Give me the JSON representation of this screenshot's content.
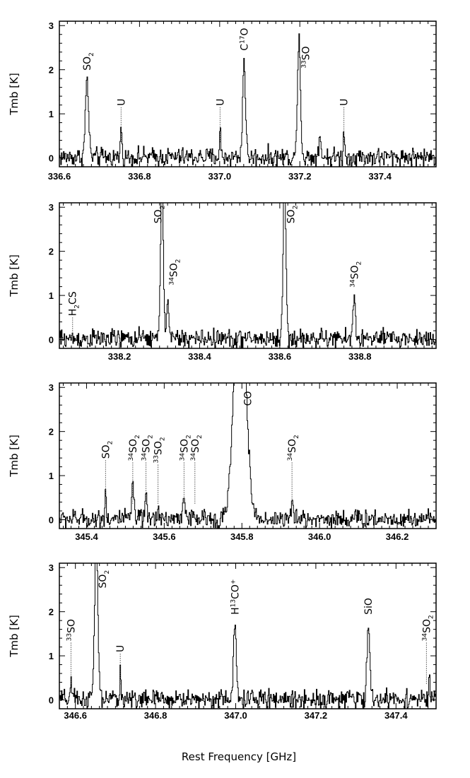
{
  "chart_data": [
    {
      "type": "line",
      "ylabel": "Tmb [K]",
      "xlim": [
        336.6,
        337.54
      ],
      "ylim": [
        -0.2,
        3.1
      ],
      "xticks": [
        "336.6",
        "336.8",
        "337.0",
        "337.2",
        "337.4"
      ],
      "xtick_values": [
        336.6,
        336.8,
        337.0,
        337.2,
        337.4
      ],
      "yticks": [
        "0",
        "1",
        "2",
        "3"
      ],
      "ytick_values": [
        0,
        1,
        2,
        3
      ],
      "peaks": [
        {
          "x": 336.669,
          "height": 1.75,
          "width": 0.004
        },
        {
          "x": 336.754,
          "height": 0.8,
          "width": 0.0015
        },
        {
          "x": 337.001,
          "height": 0.7,
          "width": 0.0015
        },
        {
          "x": 337.061,
          "height": 2.2,
          "width": 0.0035
        },
        {
          "x": 337.198,
          "height": 2.85,
          "width": 0.0035
        },
        {
          "x": 337.25,
          "height": 0.45,
          "width": 0.003
        },
        {
          "x": 337.31,
          "height": 0.65,
          "width": 0.0015
        }
      ],
      "noise": 0.14,
      "annotations": [
        {
          "species": "SO",
          "iso": "",
          "sub": "2",
          "x": 336.669,
          "y": 1.95,
          "dotted": false
        },
        {
          "species": "U",
          "iso": "",
          "sub": "",
          "x": 336.754,
          "y": 1.15,
          "dotted": true
        },
        {
          "species": "U",
          "iso": "",
          "sub": "",
          "x": 337.001,
          "y": 1.15,
          "dotted": true
        },
        {
          "species": "C",
          "iso": "17",
          "post": "O",
          "sub": "",
          "x": 337.061,
          "y": 2.4,
          "dotted": false
        },
        {
          "species": "SO",
          "iso": "33",
          "sub": "",
          "x": 337.215,
          "y": 2.0,
          "dotted": false
        },
        {
          "species": "U",
          "iso": "",
          "sub": "",
          "x": 337.31,
          "y": 1.15,
          "dotted": true
        }
      ]
    },
    {
      "type": "line",
      "ylabel": "Tmb [K]",
      "xlim": [
        338.05,
        338.99
      ],
      "ylim": [
        -0.2,
        3.1
      ],
      "xticks": [
        "338.2",
        "338.4",
        "338.6",
        "338.8"
      ],
      "xtick_values": [
        338.2,
        338.4,
        338.6,
        338.8
      ],
      "yticks": [
        "0",
        "1",
        "2",
        "3"
      ],
      "ytick_values": [
        0,
        1,
        2,
        3
      ],
      "peaks": [
        {
          "x": 338.306,
          "height": 3.6,
          "width": 0.0035
        },
        {
          "x": 338.32,
          "height": 0.95,
          "width": 0.0025
        },
        {
          "x": 338.612,
          "height": 3.6,
          "width": 0.0035
        },
        {
          "x": 338.786,
          "height": 0.95,
          "width": 0.003
        }
      ],
      "noise": 0.14,
      "annotations": [
        {
          "species": "H",
          "iso": "",
          "sub": "2",
          "post": "CS",
          "x": 338.083,
          "y": 0.5,
          "dotted": true
        },
        {
          "species": "SO",
          "iso": "",
          "sub": "2",
          "x": 338.296,
          "y": 2.6,
          "dotted": false
        },
        {
          "species": "SO",
          "iso": "34",
          "sub": "2",
          "x": 338.335,
          "y": 1.2,
          "dotted": false
        },
        {
          "species": "SO",
          "iso": "",
          "sub": "2",
          "x": 338.628,
          "y": 2.6,
          "dotted": false
        },
        {
          "species": "SO",
          "iso": "34",
          "sub": "2",
          "x": 338.786,
          "y": 1.15,
          "dotted": false
        }
      ]
    },
    {
      "type": "line",
      "ylabel": "Tmb [K]",
      "xlim": [
        345.33,
        346.3
      ],
      "ylim": [
        -0.2,
        3.1
      ],
      "xticks": [
        "345.4",
        "345.6",
        "345.8",
        "346.0",
        "346.2"
      ],
      "xtick_values": [
        345.4,
        345.6,
        345.8,
        346.0,
        346.2
      ],
      "yticks": [
        "0",
        "1",
        "2",
        "3"
      ],
      "ytick_values": [
        0,
        1,
        2,
        3
      ],
      "peaks": [
        {
          "x": 345.449,
          "height": 0.75,
          "width": 0.0015
        },
        {
          "x": 345.519,
          "height": 0.85,
          "width": 0.0025
        },
        {
          "x": 345.553,
          "height": 0.5,
          "width": 0.002
        },
        {
          "x": 345.585,
          "height": 0.35,
          "width": 0.002
        },
        {
          "x": 345.651,
          "height": 0.6,
          "width": 0.003
        },
        {
          "x": 345.795,
          "height": 6.0,
          "width": 0.014
        },
        {
          "x": 345.929,
          "height": 0.45,
          "width": 0.002
        }
      ],
      "noise": 0.14,
      "annotations": [
        {
          "species": "SO",
          "iso": "",
          "sub": "2",
          "x": 345.449,
          "y": 1.35,
          "dotted": true
        },
        {
          "species": "SO",
          "iso": "34",
          "sub": "2",
          "x": 345.519,
          "y": 1.3,
          "dotted": true
        },
        {
          "species": "SO",
          "iso": "34",
          "sub": "2",
          "x": 345.553,
          "y": 1.3,
          "dotted": true
        },
        {
          "species": "SO",
          "iso": "33",
          "sub": "2",
          "x": 345.584,
          "y": 1.25,
          "dotted": true
        },
        {
          "species": "SO",
          "iso": "34",
          "sub": "2",
          "x": 345.651,
          "y": 1.3,
          "dotted": true
        },
        {
          "species": "SO",
          "iso": "34",
          "sub": "2",
          "x": 345.679,
          "y": 1.3,
          "dotted": true
        },
        {
          "species": "CO",
          "iso": "",
          "sub": "",
          "x": 345.815,
          "y": 2.55,
          "dotted": false
        },
        {
          "species": "SO",
          "iso": "34",
          "sub": "2",
          "x": 345.929,
          "y": 1.3,
          "dotted": true
        }
      ]
    },
    {
      "type": "line",
      "ylabel": "Tmb [K]",
      "xlabel": "Rest Frequency [GHz]",
      "xlim": [
        346.56,
        347.5
      ],
      "ylim": [
        -0.2,
        3.1
      ],
      "xticks": [
        "346.6",
        "346.8",
        "347.0",
        "347.2",
        "347.4"
      ],
      "xtick_values": [
        346.6,
        346.8,
        347.0,
        347.2,
        347.4
      ],
      "yticks": [
        "0",
        "1",
        "2",
        "3"
      ],
      "ytick_values": [
        0,
        1,
        2,
        3
      ],
      "peaks": [
        {
          "x": 346.589,
          "height": 0.35,
          "width": 0.002
        },
        {
          "x": 346.652,
          "height": 3.6,
          "width": 0.004
        },
        {
          "x": 346.712,
          "height": 0.7,
          "width": 0.0015
        },
        {
          "x": 346.998,
          "height": 1.65,
          "width": 0.0035
        },
        {
          "x": 347.331,
          "height": 1.65,
          "width": 0.0035
        },
        {
          "x": 347.483,
          "height": 0.35,
          "width": 0.002
        }
      ],
      "noise": 0.14,
      "annotations": [
        {
          "species": "SO",
          "iso": "33",
          "sub": "",
          "x": 346.589,
          "y": 1.3,
          "dotted": true
        },
        {
          "species": "SO",
          "iso": "",
          "sub": "2",
          "x": 346.668,
          "y": 2.5,
          "dotted": false
        },
        {
          "species": "U",
          "iso": "",
          "sub": "",
          "x": 346.712,
          "y": 1.05,
          "dotted": true
        },
        {
          "species": "H",
          "iso": "13",
          "post": "CO",
          "sup2": "+",
          "sub": "",
          "x": 346.998,
          "y": 1.9,
          "dotted": false
        },
        {
          "species": "SiO",
          "iso": "",
          "sub": "",
          "x": 347.331,
          "y": 1.9,
          "dotted": false
        },
        {
          "species": "SO",
          "iso": "34",
          "sub": "2",
          "x": 347.476,
          "y": 1.3,
          "dotted": true
        }
      ]
    }
  ],
  "colors": {
    "line": "#000000",
    "background": "#ffffff",
    "dotted": "#555555"
  }
}
